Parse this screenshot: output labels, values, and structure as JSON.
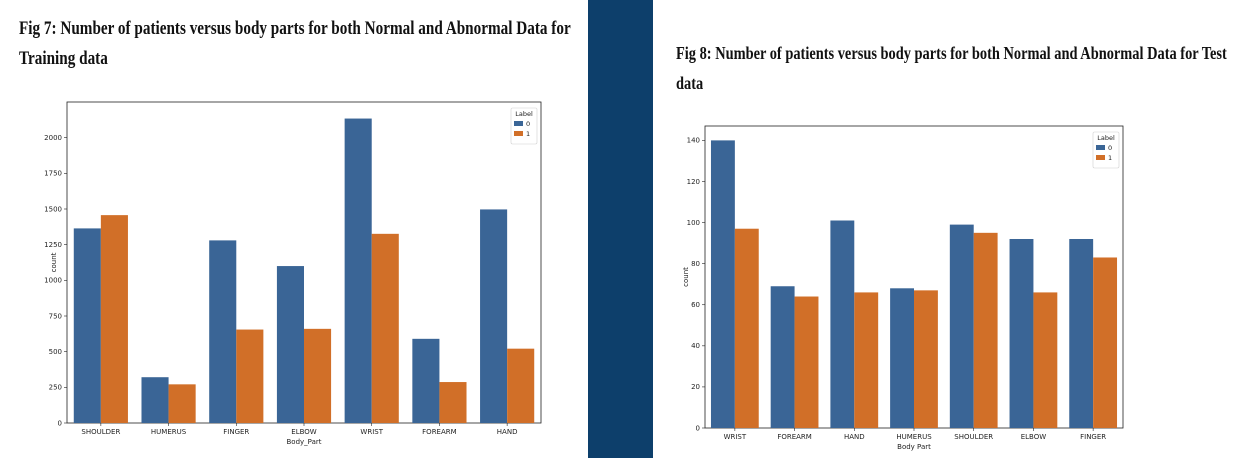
{
  "figures": [
    {
      "title": "Fig 7: Number of patients versus body parts for both Normal and Abnormal Data for Training data"
    },
    {
      "title": "Fig 8: Number of patients versus body parts for both Normal and Abnormal Data for Test data"
    }
  ],
  "colors": {
    "series0": "#3a6596",
    "series1": "#d16f28",
    "background": "#0d3f6b"
  },
  "chart_data": [
    {
      "type": "bar",
      "categories": [
        "SHOULDER",
        "HUMERUS",
        "FINGER",
        "ELBOW",
        "WRIST",
        "FOREARM",
        "HAND"
      ],
      "series": [
        {
          "name": "0",
          "values": [
            1364,
            321,
            1280,
            1100,
            2134,
            590,
            1497
          ]
        },
        {
          "name": "1",
          "values": [
            1457,
            271,
            655,
            660,
            1326,
            287,
            521
          ]
        }
      ],
      "xlabel": "Body_Part",
      "ylabel": "count",
      "ylim": [
        0,
        2250
      ],
      "yticks": [
        0,
        250,
        500,
        750,
        1000,
        1250,
        1500,
        1750,
        2000
      ],
      "legend_title": "Label",
      "legend_position": "top-right",
      "grid": false
    },
    {
      "type": "bar",
      "categories": [
        "WRIST",
        "FOREARM",
        "HAND",
        "HUMERUS",
        "SHOULDER",
        "ELBOW",
        "FINGER"
      ],
      "series": [
        {
          "name": "0",
          "values": [
            140,
            69,
            101,
            68,
            99,
            92,
            92
          ]
        },
        {
          "name": "1",
          "values": [
            97,
            64,
            66,
            67,
            95,
            66,
            83
          ]
        }
      ],
      "xlabel": "Body Part",
      "ylabel": "count",
      "ylim": [
        0,
        147
      ],
      "yticks": [
        0,
        20,
        40,
        60,
        80,
        100,
        120,
        140
      ],
      "legend_title": "Label",
      "legend_position": "top-right",
      "grid": false
    }
  ]
}
